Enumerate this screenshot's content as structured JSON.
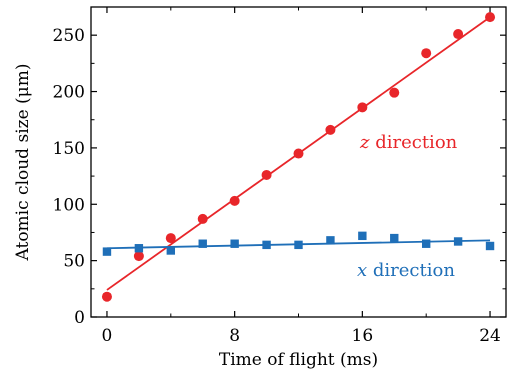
{
  "chart_data": {
    "type": "scatter",
    "xlabel": "Time of flight (ms)",
    "ylabel": "Atomic cloud size (μm)",
    "xlim": [
      -1,
      25
    ],
    "ylim": [
      0,
      275
    ],
    "xticks": [
      0,
      8,
      16,
      24
    ],
    "xtick_labels": [
      "0",
      "8",
      "16",
      "24"
    ],
    "yticks": [
      0,
      50,
      100,
      150,
      200,
      250
    ],
    "ytick_labels": [
      "0",
      "50",
      "100",
      "150",
      "200",
      "250"
    ],
    "grid": false,
    "legend": "none",
    "series": [
      {
        "name": "z direction",
        "label_var": "z",
        "label_text": " direction",
        "color": "#e8262a",
        "marker": "circle",
        "x": [
          0,
          2,
          4,
          6,
          8,
          10,
          12,
          14,
          16,
          18,
          20,
          22,
          24
        ],
        "y": [
          18,
          54,
          70,
          87,
          103,
          126,
          145,
          166,
          186,
          199,
          234,
          251,
          266
        ],
        "fit": {
          "x": [
            0,
            24
          ],
          "y": [
            24,
            266
          ]
        }
      },
      {
        "name": "x direction",
        "label_var": "x",
        "label_text": " direction",
        "color": "#1f6fb8",
        "marker": "square",
        "x": [
          0,
          2,
          4,
          6,
          8,
          10,
          12,
          14,
          16,
          18,
          20,
          22,
          24
        ],
        "y": [
          58,
          61,
          59,
          65,
          65,
          64,
          64,
          68,
          72,
          70,
          65,
          67,
          63
        ],
        "fit": {
          "x": [
            0,
            24
          ],
          "y": [
            61,
            68
          ]
        }
      }
    ]
  }
}
